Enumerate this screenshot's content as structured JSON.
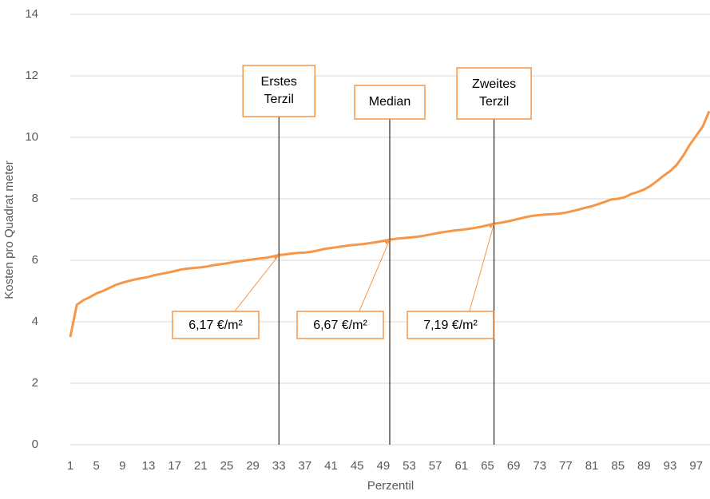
{
  "chart_data": {
    "type": "line",
    "y_label": "Kosten pro Quadrat meter",
    "x_label": "Perzentil",
    "x": [
      1,
      2,
      3,
      4,
      5,
      6,
      7,
      8,
      9,
      10,
      11,
      12,
      13,
      14,
      15,
      16,
      17,
      18,
      19,
      20,
      21,
      22,
      23,
      24,
      25,
      26,
      27,
      28,
      29,
      30,
      31,
      32,
      33,
      34,
      35,
      36,
      37,
      38,
      39,
      40,
      41,
      42,
      43,
      44,
      45,
      46,
      47,
      48,
      49,
      50,
      51,
      52,
      53,
      54,
      55,
      56,
      57,
      58,
      59,
      60,
      61,
      62,
      63,
      64,
      65,
      66,
      67,
      68,
      69,
      70,
      71,
      72,
      73,
      74,
      75,
      76,
      77,
      78,
      79,
      80,
      81,
      82,
      83,
      84,
      85,
      86,
      87,
      88,
      89,
      90,
      91,
      92,
      93,
      94,
      95,
      96,
      97,
      98,
      99
    ],
    "series": [
      {
        "color": "#f79646",
        "values": [
          3.5,
          4.55,
          4.7,
          4.8,
          4.92,
          5.0,
          5.1,
          5.2,
          5.27,
          5.33,
          5.38,
          5.42,
          5.46,
          5.52,
          5.56,
          5.6,
          5.65,
          5.7,
          5.73,
          5.75,
          5.77,
          5.8,
          5.84,
          5.87,
          5.9,
          5.94,
          5.97,
          6.0,
          6.03,
          6.06,
          6.08,
          6.12,
          6.17,
          6.19,
          6.22,
          6.24,
          6.25,
          6.28,
          6.32,
          6.37,
          6.4,
          6.43,
          6.46,
          6.49,
          6.51,
          6.53,
          6.56,
          6.59,
          6.63,
          6.67,
          6.7,
          6.72,
          6.74,
          6.76,
          6.79,
          6.83,
          6.87,
          6.91,
          6.94,
          6.97,
          6.99,
          7.02,
          7.05,
          7.09,
          7.14,
          7.19,
          7.22,
          7.26,
          7.31,
          7.36,
          7.41,
          7.45,
          7.47,
          7.49,
          7.5,
          7.52,
          7.55,
          7.6,
          7.65,
          7.71,
          7.76,
          7.83,
          7.9,
          7.98,
          8.0,
          8.05,
          8.15,
          8.22,
          8.3,
          8.42,
          8.58,
          8.75,
          8.9,
          9.1,
          9.4,
          9.75,
          10.05,
          10.35,
          10.85
        ]
      }
    ],
    "xlim": [
      1,
      99
    ],
    "xticks": [
      1,
      5,
      9,
      13,
      17,
      21,
      25,
      29,
      33,
      37,
      41,
      45,
      49,
      53,
      57,
      61,
      65,
      69,
      73,
      77,
      81,
      85,
      89,
      93,
      97
    ],
    "ylim": [
      0,
      14
    ],
    "yticks": [
      0,
      2,
      4,
      6,
      8,
      10,
      12,
      14
    ],
    "grid": true,
    "markers": [
      {
        "x": 33,
        "label": [
          "Erstes",
          "Terzil"
        ]
      },
      {
        "x": 50,
        "label": [
          "Median"
        ]
      },
      {
        "x": 66,
        "label": [
          "Zweites",
          "Terzil"
        ]
      }
    ],
    "annotations": [
      {
        "x": 33,
        "y": 6.17,
        "text": "6,17 €/m²"
      },
      {
        "x": 50,
        "y": 6.67,
        "text": "6,67 €/m²"
      },
      {
        "x": 66,
        "y": 7.19,
        "text": "7,19 €/m²"
      }
    ]
  }
}
